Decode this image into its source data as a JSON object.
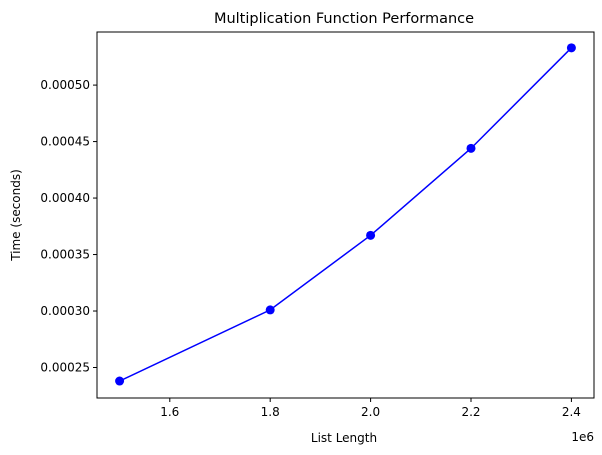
{
  "chart_data": {
    "type": "line",
    "title": "Multiplication Function Performance",
    "xlabel": "List Length",
    "ylabel": "Time (seconds)",
    "x_multiplier_label": "1e6",
    "x_scale": 1000000,
    "xlim": [
      1.455,
      2.445
    ],
    "ylim": [
      0.000223,
      0.000547
    ],
    "x_ticks": [
      1.6,
      1.8,
      2.0,
      2.2,
      2.4
    ],
    "x_tick_labels": [
      "1.6",
      "1.8",
      "2.0",
      "2.2",
      "2.4"
    ],
    "y_ticks": [
      0.00025,
      0.0003,
      0.00035,
      0.0004,
      0.00045,
      0.0005
    ],
    "y_tick_labels": [
      "0.00025",
      "0.00030",
      "0.00035",
      "0.00040",
      "0.00045",
      "0.00050"
    ],
    "grid": false,
    "series": [
      {
        "color": "#0000ff",
        "marker": "circle",
        "x": [
          1.5,
          1.8,
          2.0,
          2.2,
          2.4
        ],
        "y": [
          0.000238,
          0.000301,
          0.000367,
          0.000444,
          0.000533
        ]
      }
    ]
  }
}
